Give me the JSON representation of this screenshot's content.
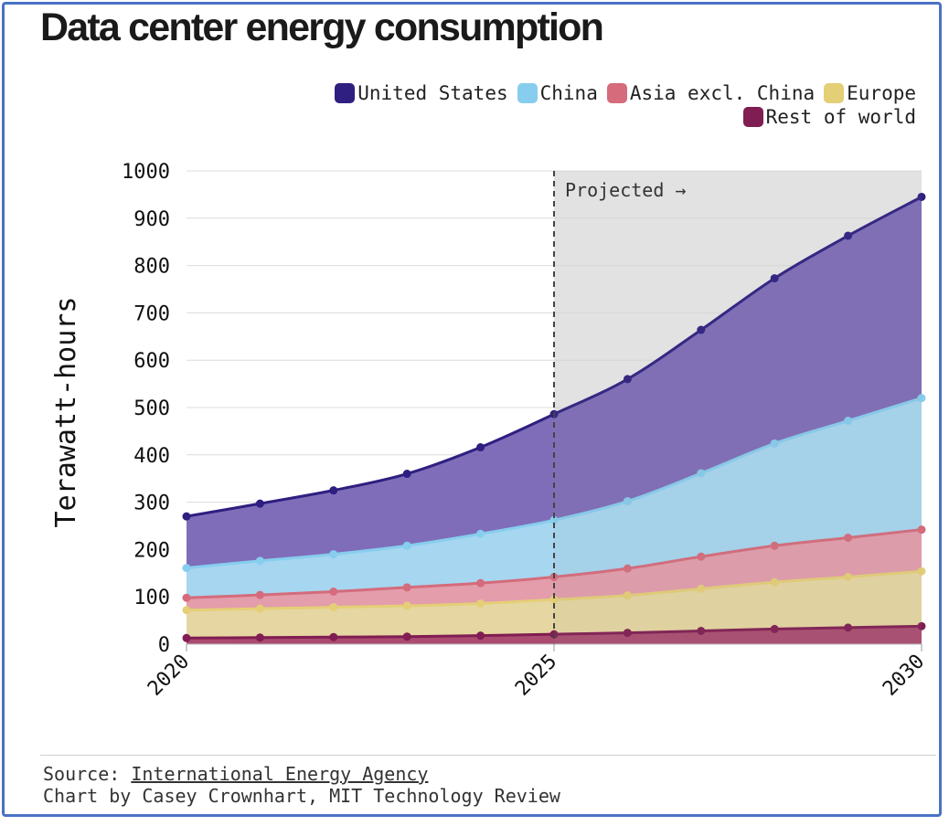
{
  "title": "Data center energy consumption",
  "legend": [
    {
      "name": "United States",
      "color": "#2e1f80"
    },
    {
      "name": "China",
      "color": "#87cdee"
    },
    {
      "name": "Asia excl. China",
      "color": "#d56b7b"
    },
    {
      "name": "Europe",
      "color": "#e4cf77"
    },
    {
      "name": "Rest of world",
      "color": "#801d52"
    }
  ],
  "projected_label": "Projected →",
  "source": {
    "prefix": "Source: ",
    "link_text": "International Energy Agency",
    "credit": "Chart by Casey Crownhart, MIT Technology Review"
  },
  "chart_data": {
    "type": "area",
    "stacked": true,
    "title": "Data center energy consumption",
    "ylabel": "Terawatt-hours",
    "xlabel": "",
    "x": [
      2020,
      2021,
      2022,
      2023,
      2024,
      2025,
      2026,
      2027,
      2028,
      2029,
      2030
    ],
    "x_tick_labels": [
      "2020",
      "2025",
      "2030"
    ],
    "ylim": [
      0,
      1000
    ],
    "y_ticks": [
      0,
      100,
      200,
      300,
      400,
      500,
      600,
      700,
      800,
      900,
      1000
    ],
    "projection_start": 2025,
    "grid": true,
    "legend_position": "top-right",
    "series_cumulative_note": "values are stacked totals (top edge of each band)",
    "series": [
      {
        "name": "Rest of world",
        "color": "#801d52",
        "fill": "#a8436e",
        "values": [
          13,
          14,
          15,
          16,
          18,
          21,
          24,
          28,
          32,
          35,
          38
        ]
      },
      {
        "name": "Europe",
        "color": "#e4cf77",
        "fill": "#e6d9a0",
        "values": [
          72,
          75,
          78,
          81,
          86,
          94,
          103,
          117,
          131,
          142,
          154
        ]
      },
      {
        "name": "Asia excl. China",
        "color": "#d56b7b",
        "fill": "#e69aa7",
        "values": [
          98,
          104,
          111,
          120,
          129,
          142,
          160,
          185,
          208,
          225,
          242
        ]
      },
      {
        "name": "China",
        "color": "#87cdee",
        "fill": "#a9dcf2",
        "values": [
          161,
          176,
          190,
          208,
          233,
          262,
          302,
          361,
          424,
          472,
          520
        ]
      },
      {
        "name": "United States",
        "color": "#2e1f80",
        "fill": "#7865b5",
        "values": [
          270,
          297,
          325,
          360,
          416,
          486,
          560,
          664,
          773,
          863,
          945
        ]
      }
    ]
  }
}
